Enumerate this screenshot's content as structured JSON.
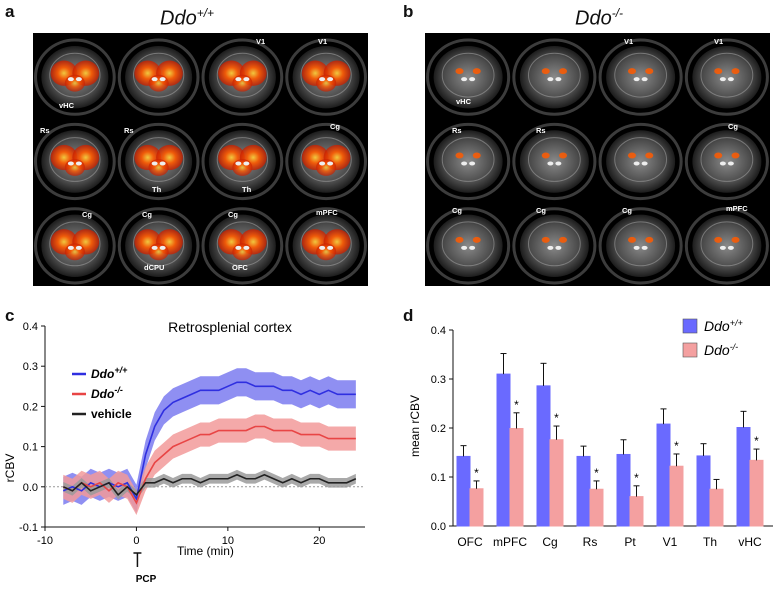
{
  "panels": {
    "a": {
      "letter": "a",
      "title_main": "Ddo",
      "title_sup": "+/+"
    },
    "b": {
      "letter": "b",
      "title_main": "Ddo",
      "title_sup": "-/-"
    },
    "c": {
      "letter": "c"
    },
    "d": {
      "letter": "d"
    }
  },
  "brain_labels": {
    "v1": "V1",
    "vhc": "vHC",
    "rs": "Rs",
    "cg": "Cg",
    "th": "Th",
    "dcpu": "dCPU",
    "ofc": "OFC",
    "mpfc": "mPFC"
  },
  "colors": {
    "wt": "#2f2fe0",
    "wt_band": "#7b7bf0",
    "ko": "#e84545",
    "ko_band": "#f29a9a",
    "veh": "#222222",
    "veh_band": "#9a9a9a",
    "bar_wt": "#6a6aff",
    "bar_ko": "#f4a0a0",
    "activation": "#ff5a00"
  },
  "chart_data": [
    {
      "type": "line",
      "title": "Retrosplenial cortex",
      "xlabel": "Time (min)",
      "ylabel": "rCBV",
      "xlim": [
        -10,
        25
      ],
      "ylim": [
        -0.1,
        0.4
      ],
      "xticks": [
        "-10",
        "0",
        "10",
        "20"
      ],
      "yticks": [
        "-0.1",
        "0.0",
        "0.1",
        "0.2",
        "0.3",
        "0.4"
      ],
      "marker_label": "PCP",
      "legend_position": "top-left",
      "x": [
        -8,
        -7,
        -6,
        -5,
        -4,
        -3,
        -2,
        -1,
        0,
        1,
        2,
        3,
        4,
        5,
        6,
        7,
        8,
        9,
        10,
        11,
        12,
        13,
        14,
        15,
        16,
        17,
        18,
        19,
        20,
        21,
        22,
        23,
        24
      ],
      "series": [
        {
          "name": "Ddo",
          "name_sup": "+/+",
          "italic": true,
          "color_key": "wt",
          "values": [
            -0.01,
            0.0,
            -0.01,
            0.01,
            0.0,
            0.01,
            0.0,
            0.01,
            -0.03,
            0.08,
            0.15,
            0.19,
            0.21,
            0.22,
            0.23,
            0.24,
            0.24,
            0.24,
            0.25,
            0.26,
            0.26,
            0.25,
            0.25,
            0.25,
            0.24,
            0.24,
            0.23,
            0.24,
            0.23,
            0.24,
            0.23,
            0.23,
            0.23
          ],
          "error": 0.035
        },
        {
          "name": "Ddo",
          "name_sup": "-/-",
          "italic": true,
          "color_key": "ko",
          "values": [
            0.0,
            -0.01,
            0.01,
            0.0,
            0.01,
            -0.01,
            0.01,
            0.0,
            -0.04,
            0.02,
            0.06,
            0.08,
            0.1,
            0.11,
            0.12,
            0.13,
            0.13,
            0.14,
            0.14,
            0.14,
            0.14,
            0.15,
            0.15,
            0.14,
            0.14,
            0.14,
            0.13,
            0.13,
            0.13,
            0.12,
            0.12,
            0.12,
            0.12
          ],
          "error": 0.03
        },
        {
          "name": "vehicle",
          "name_sup": "",
          "italic": false,
          "color_key": "veh",
          "values": [
            0.0,
            -0.01,
            0.01,
            -0.01,
            0.0,
            0.01,
            -0.02,
            0.0,
            -0.02,
            0.01,
            0.01,
            0.02,
            0.01,
            0.02,
            0.02,
            0.01,
            0.02,
            0.02,
            0.02,
            0.03,
            0.02,
            0.02,
            0.03,
            0.02,
            0.01,
            0.02,
            0.01,
            0.02,
            0.02,
            0.01,
            0.01,
            0.01,
            0.02
          ],
          "error": 0.012
        }
      ]
    },
    {
      "type": "bar",
      "ylabel": "mean rCBV",
      "ylim": [
        0,
        0.4
      ],
      "yticks": [
        "0.0",
        "0.1",
        "0.2",
        "0.3",
        "0.4"
      ],
      "legend_position": "top-right",
      "categories": [
        "OFC",
        "mPFC",
        "Cg",
        "Rs",
        "Pt",
        "V1",
        "Th",
        "vHC"
      ],
      "significance": [
        "*",
        "*",
        "*",
        "*",
        "*",
        "*",
        "",
        "*"
      ],
      "series": [
        {
          "name": "Ddo",
          "name_sup": "+/+",
          "color_key": "bar_wt",
          "values": [
            0.142,
            0.31,
            0.286,
            0.142,
            0.146,
            0.208,
            0.143,
            0.201
          ],
          "errors": [
            0.022,
            0.042,
            0.046,
            0.021,
            0.03,
            0.031,
            0.025,
            0.033
          ]
        },
        {
          "name": "Ddo",
          "name_sup": "-/-",
          "color_key": "bar_ko",
          "values": [
            0.076,
            0.199,
            0.176,
            0.075,
            0.06,
            0.122,
            0.075,
            0.134
          ],
          "errors": [
            0.016,
            0.032,
            0.028,
            0.017,
            0.022,
            0.025,
            0.02,
            0.023
          ]
        }
      ]
    }
  ]
}
